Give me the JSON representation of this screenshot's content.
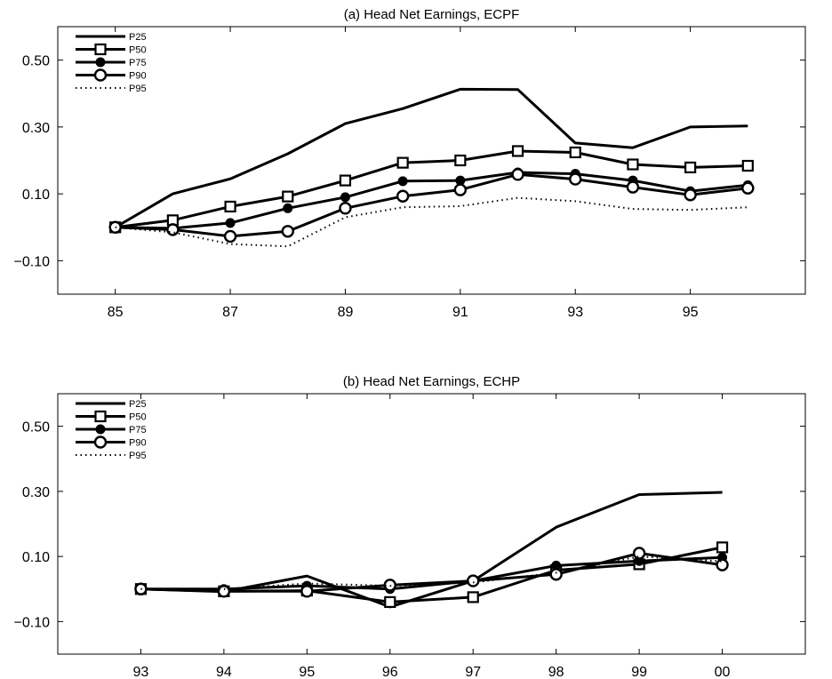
{
  "chart_data": [
    {
      "type": "line",
      "title": "(a) Head Net Earnings, ECPF",
      "xlabel": "",
      "ylabel": "",
      "x": [
        85,
        86,
        87,
        88,
        89,
        90,
        91,
        92,
        93,
        94,
        95,
        96
      ],
      "xlim": [
        84,
        97
      ],
      "ylim": [
        -0.2,
        0.6
      ],
      "xticks": [
        "85",
        "87",
        "89",
        "91",
        "93",
        "95"
      ],
      "xtick_values": [
        85,
        87,
        89,
        91,
        93,
        95
      ],
      "yticks": [
        "0.50",
        "0.30",
        "0.10",
        "−0.10"
      ],
      "ytick_values": [
        0.5,
        0.3,
        0.1,
        -0.1
      ],
      "grid": false,
      "legend": "top-left",
      "series": [
        {
          "name": "P25",
          "marker": "none",
          "style": "solid",
          "values": [
            0.0,
            0.1,
            0.145,
            0.22,
            0.31,
            0.355,
            0.413,
            0.412,
            0.252,
            0.238,
            0.3,
            0.303
          ]
        },
        {
          "name": "P50",
          "marker": "square",
          "style": "solid",
          "values": [
            0.0,
            0.021,
            0.062,
            0.092,
            0.14,
            0.193,
            0.2,
            0.228,
            0.224,
            0.188,
            0.179,
            0.184
          ]
        },
        {
          "name": "P75",
          "marker": "dot",
          "style": "solid",
          "values": [
            0.0,
            -0.003,
            0.013,
            0.057,
            0.09,
            0.138,
            0.14,
            0.164,
            0.16,
            0.14,
            0.108,
            0.126
          ]
        },
        {
          "name": "P90",
          "marker": "circle",
          "style": "solid",
          "values": [
            0.0,
            -0.007,
            -0.027,
            -0.012,
            0.057,
            0.093,
            0.112,
            0.158,
            0.144,
            0.12,
            0.097,
            0.117
          ]
        },
        {
          "name": "P95",
          "marker": "none",
          "style": "dotted",
          "values": [
            0.0,
            -0.015,
            -0.05,
            -0.057,
            0.03,
            0.06,
            0.063,
            0.088,
            0.078,
            0.055,
            0.052,
            0.06
          ]
        }
      ]
    },
    {
      "type": "line",
      "title": "(b) Head Net Earnings, ECHP",
      "xlabel": "",
      "ylabel": "",
      "x": [
        93,
        94,
        95,
        96,
        97,
        98,
        99,
        100
      ],
      "xlim": [
        92,
        101
      ],
      "ylim": [
        -0.2,
        0.6
      ],
      "xticks": [
        "93",
        "94",
        "95",
        "96",
        "97",
        "98",
        "99",
        "00"
      ],
      "xtick_values": [
        93,
        94,
        95,
        96,
        97,
        98,
        99,
        100
      ],
      "yticks": [
        "0.50",
        "0.30",
        "0.10",
        "−0.10"
      ],
      "ytick_values": [
        0.5,
        0.3,
        0.1,
        -0.1
      ],
      "grid": false,
      "legend": "top-left",
      "series": [
        {
          "name": "P25",
          "marker": "none",
          "style": "solid",
          "values": [
            0.0,
            -0.008,
            0.04,
            -0.055,
            0.025,
            0.19,
            0.29,
            0.297
          ]
        },
        {
          "name": "P50",
          "marker": "square",
          "style": "solid",
          "values": [
            0.0,
            -0.007,
            -0.005,
            -0.04,
            -0.025,
            0.058,
            0.076,
            0.128
          ]
        },
        {
          "name": "P75",
          "marker": "dot",
          "style": "solid",
          "values": [
            0.0,
            0.0,
            0.01,
            0.0,
            0.025,
            0.072,
            0.086,
            0.097
          ]
        },
        {
          "name": "P90",
          "marker": "circle",
          "style": "solid",
          "values": [
            0.0,
            -0.007,
            -0.007,
            0.012,
            0.025,
            0.045,
            0.11,
            0.074
          ]
        },
        {
          "name": "P95",
          "marker": "none",
          "style": "dotted",
          "values": [
            0.0,
            0.0,
            0.017,
            0.01,
            0.02,
            0.05,
            0.1,
            0.085
          ]
        }
      ]
    }
  ]
}
